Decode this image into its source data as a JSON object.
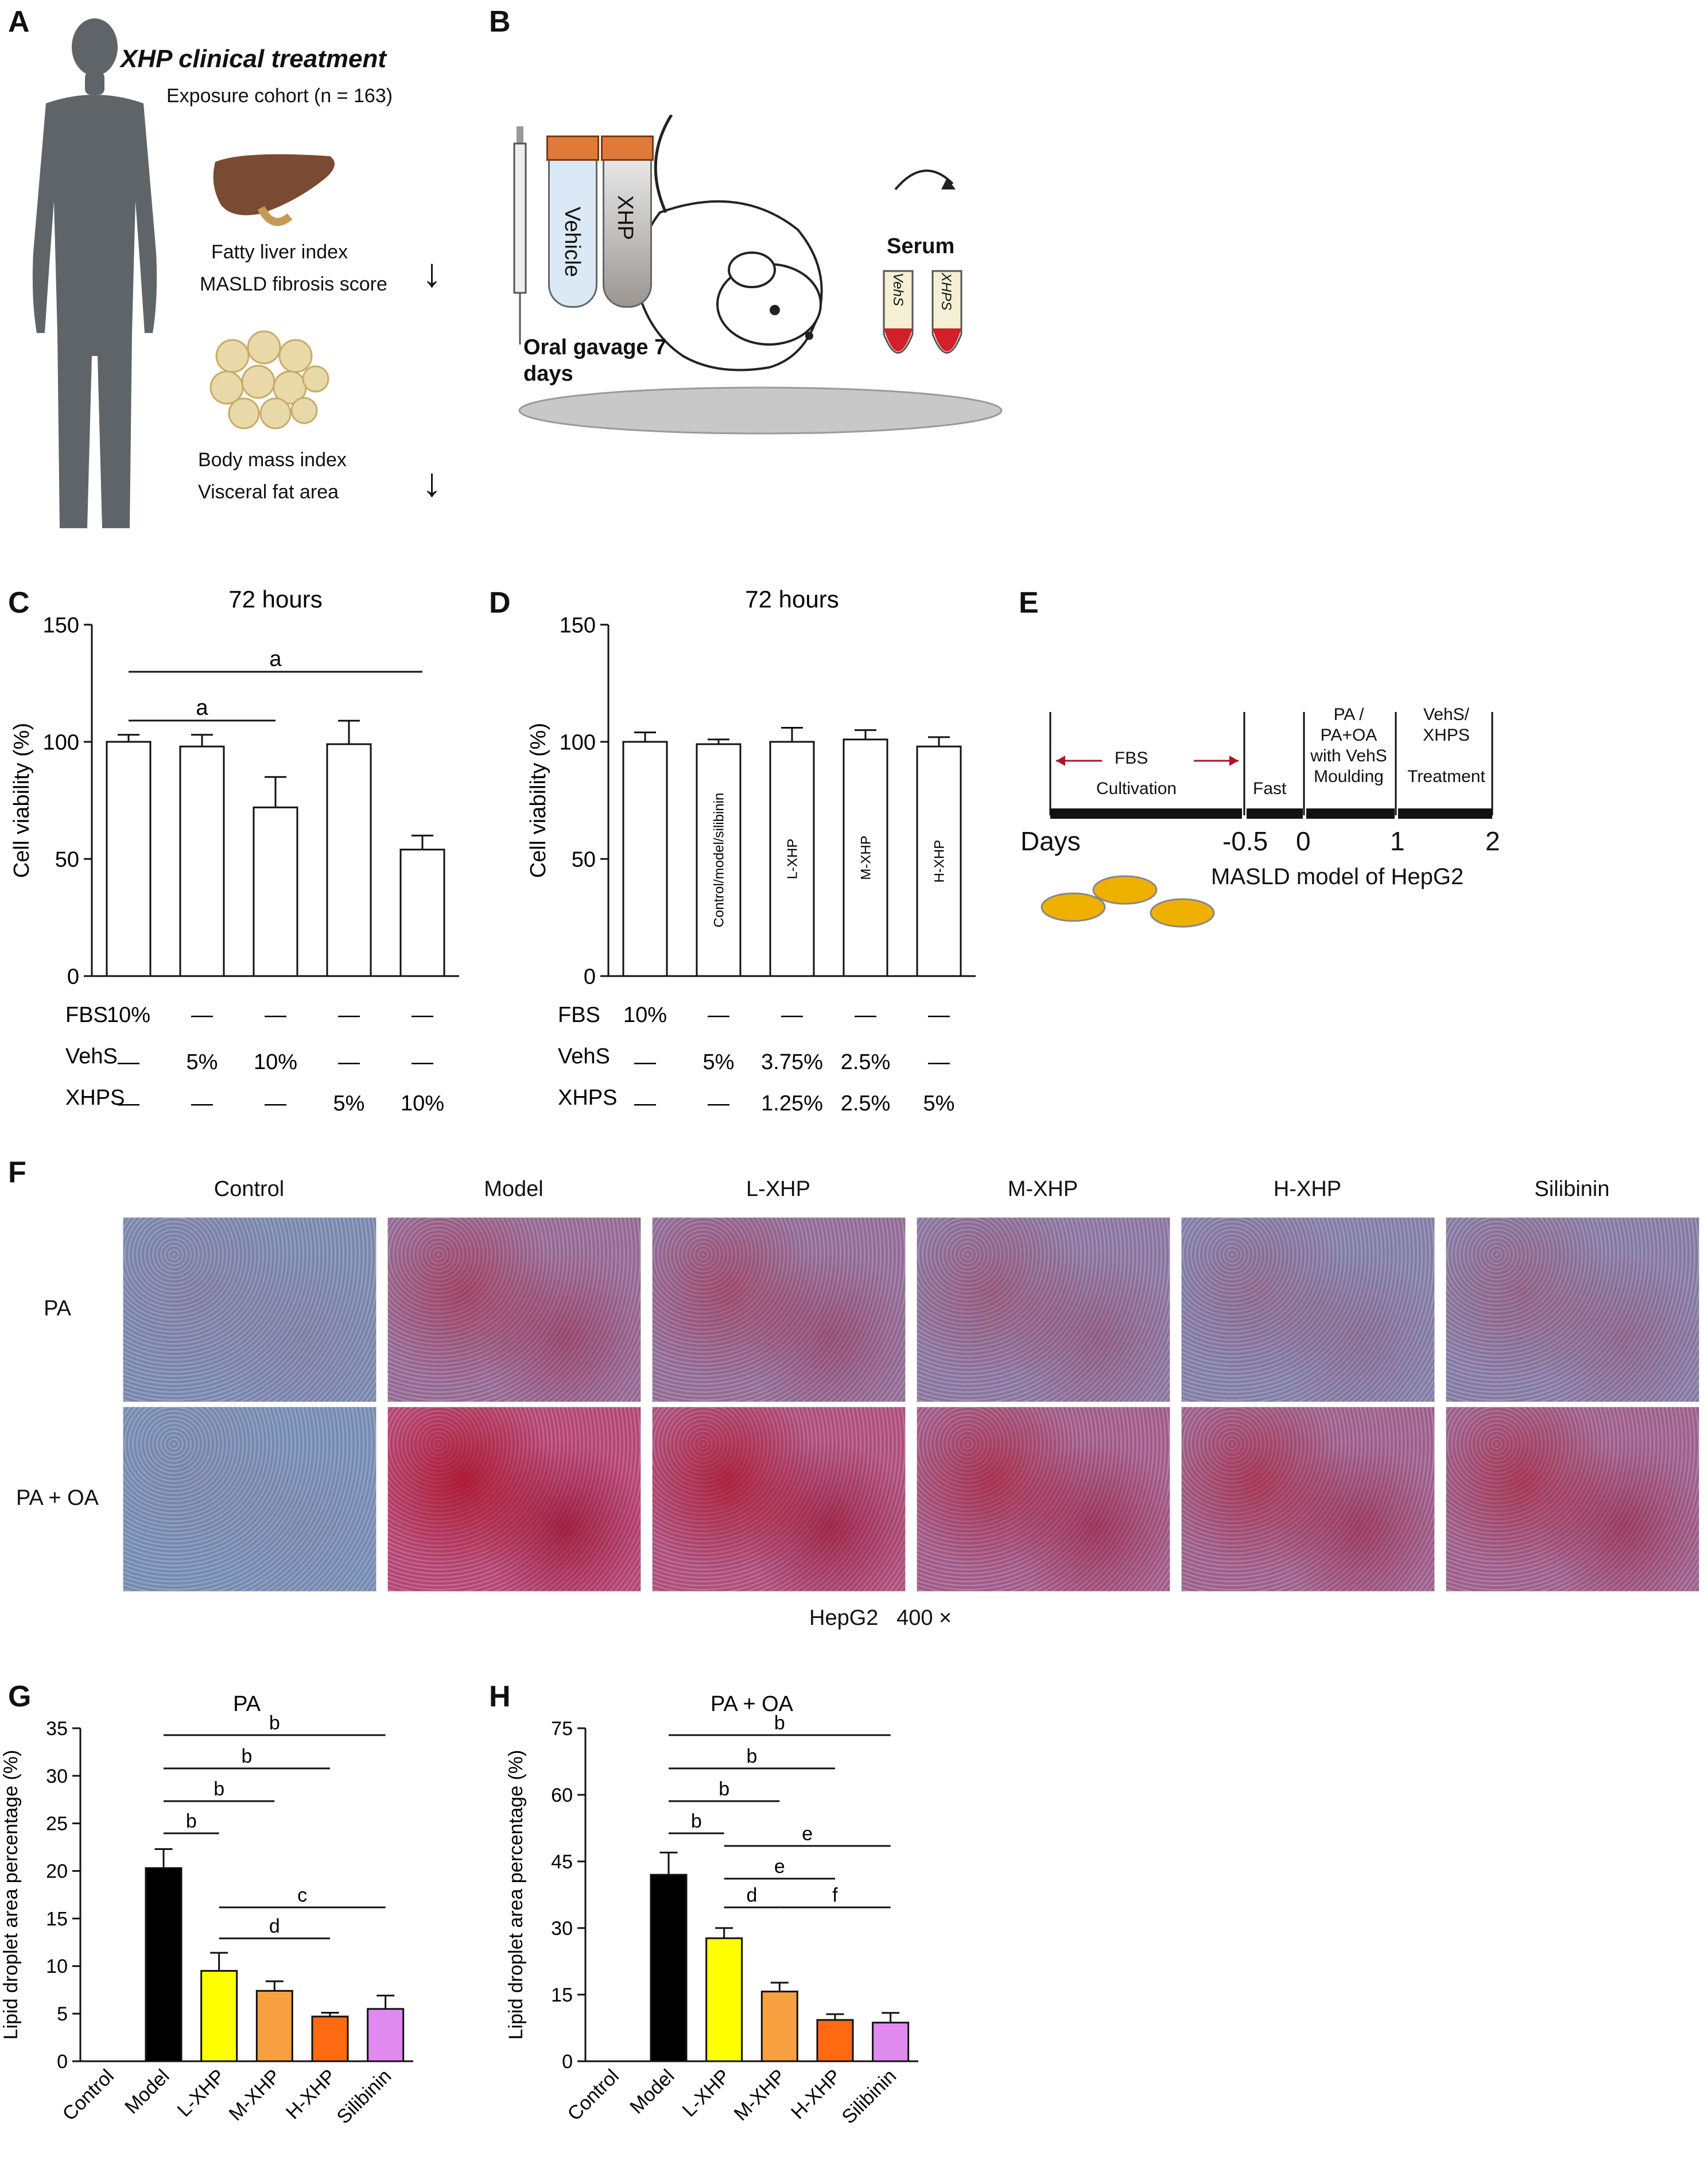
{
  "panels": {
    "A": "A",
    "B": "B",
    "C": "C",
    "D": "D",
    "E": "E",
    "F": "F",
    "G": "G",
    "H": "H"
  },
  "panelA": {
    "title": "XHP clinical treatment",
    "cohort": "Exposure cohort (n = 163)",
    "liver_lines": [
      "Fatty liver index",
      "MASLD fibrosis score"
    ],
    "fat_lines": [
      "Body mass index",
      "Visceral fat area"
    ],
    "arrow_label": "↓"
  },
  "panelB": {
    "tube1": "Vehicle",
    "tube2": "XHP",
    "gavage": [
      "Oral gavage 7",
      "days"
    ],
    "serum": "Serum",
    "vial1": "VehS",
    "vial2": "XHPS"
  },
  "panelE": {
    "labels": {
      "fbs": "FBS",
      "cultivation": "Cultivation",
      "fast": "Fast",
      "pa_lines": [
        "PA /",
        "PA+OA",
        "with VehS",
        "Moulding"
      ],
      "veh_lines": [
        "VehS/",
        "XHPS",
        "Treatment"
      ],
      "days": "Days",
      "ticks": [
        "-0.5",
        "0",
        "1",
        "2"
      ],
      "model": "MASLD model of HepG2"
    }
  },
  "panelF": {
    "columns": [
      "Control",
      "Model",
      "L-XHP",
      "M-XHP",
      "H-XHP",
      "Silibinin"
    ],
    "rows": [
      "PA",
      "PA + OA"
    ],
    "caption": "HepG2   400 ×",
    "stain_levels": [
      [
        0.1,
        0.45,
        0.4,
        0.3,
        0.2,
        0.25
      ],
      [
        0.05,
        0.85,
        0.75,
        0.6,
        0.55,
        0.55
      ]
    ]
  },
  "chart_data": [
    {
      "id": "C",
      "type": "bar",
      "title": "72 hours",
      "ylabel": "Cell viability (%)",
      "ylim": [
        0,
        150
      ],
      "yticks": [
        0,
        50,
        100,
        150
      ],
      "values": [
        100,
        98,
        72,
        99,
        54
      ],
      "errors": [
        3,
        5,
        13,
        10,
        6
      ],
      "bar_labels": [
        "",
        "",
        "",
        "",
        ""
      ],
      "row_headers": [
        "FBS",
        "VehS",
        "XHPS"
      ],
      "rows": [
        [
          "10%",
          "—",
          "—",
          "—",
          "—"
        ],
        [
          "—",
          "5%",
          "10%",
          "—",
          "—"
        ],
        [
          "—",
          "—",
          "—",
          "5%",
          "10%"
        ]
      ],
      "significance": [
        {
          "from": 0,
          "to": 2,
          "label": "a"
        },
        {
          "from": 0,
          "to": 4,
          "label": "a"
        }
      ]
    },
    {
      "id": "D",
      "type": "bar",
      "title": "72 hours",
      "ylabel": "Cell viability (%)",
      "ylim": [
        0,
        150
      ],
      "yticks": [
        0,
        50,
        100,
        150
      ],
      "values": [
        100,
        99,
        100,
        101,
        98
      ],
      "errors": [
        4,
        2,
        6,
        4,
        4
      ],
      "bar_labels": [
        "",
        "Control/model/silibinin",
        "L-XHP",
        "M-XHP",
        "H-XHP"
      ],
      "row_headers": [
        "FBS",
        "VehS",
        "XHPS"
      ],
      "rows": [
        [
          "10%",
          "—",
          "—",
          "—",
          "—"
        ],
        [
          "—",
          "5%",
          "3.75%",
          "2.5%",
          "—"
        ],
        [
          "—",
          "—",
          "1.25%",
          "2.5%",
          "5%"
        ]
      ],
      "significance": []
    },
    {
      "id": "G",
      "type": "bar",
      "title": "PA",
      "ylabel": "Lipid droplet area percentage (%)",
      "ylim": [
        0,
        35
      ],
      "yticks": [
        0,
        5,
        10,
        15,
        20,
        25,
        30,
        35
      ],
      "categories": [
        "Control",
        "Model",
        "L-XHP",
        "M-XHP",
        "H-XHP",
        "Silibinin"
      ],
      "values": [
        0,
        20.3,
        9.5,
        7.4,
        4.7,
        5.5
      ],
      "errors": [
        0,
        2.0,
        1.9,
        1.0,
        0.4,
        1.4
      ],
      "colors": [
        "#000000",
        "#000000",
        "#ffff00",
        "#f7a040",
        "#ff6a13",
        "#e08af0"
      ],
      "significance": [
        {
          "from": 1,
          "to": 2,
          "label": "b"
        },
        {
          "from": 1,
          "to": 3,
          "label": "b"
        },
        {
          "from": 1,
          "to": 4,
          "label": "b"
        },
        {
          "from": 1,
          "to": 5,
          "label": "b"
        },
        {
          "from": 2,
          "to": 4,
          "label": "d"
        },
        {
          "from": 2,
          "to": 5,
          "label": "c"
        }
      ]
    },
    {
      "id": "H",
      "type": "bar",
      "title": "PA + OA",
      "ylabel": "Lipid droplet area percentage (%)",
      "ylim": [
        0,
        75
      ],
      "yticks": [
        0,
        15,
        30,
        45,
        60,
        75
      ],
      "categories": [
        "Control",
        "Model",
        "L-XHP",
        "M-XHP",
        "H-XHP",
        "Silibinin"
      ],
      "values": [
        0,
        42,
        27.7,
        15.7,
        9.3,
        8.7
      ],
      "errors": [
        0,
        5,
        2.3,
        2.0,
        1.3,
        2.2
      ],
      "colors": [
        "#000000",
        "#000000",
        "#ffff00",
        "#f7a040",
        "#ff6a13",
        "#e08af0"
      ],
      "significance": [
        {
          "from": 1,
          "to": 2,
          "label": "b"
        },
        {
          "from": 1,
          "to": 3,
          "label": "b"
        },
        {
          "from": 1,
          "to": 4,
          "label": "b"
        },
        {
          "from": 1,
          "to": 5,
          "label": "b"
        },
        {
          "from": 2,
          "to": 3,
          "label": "d"
        },
        {
          "from": 2,
          "to": 4,
          "label": "e"
        },
        {
          "from": 2,
          "to": 5,
          "label": "e"
        },
        {
          "from": 3,
          "to": 5,
          "label": "f"
        }
      ]
    }
  ]
}
